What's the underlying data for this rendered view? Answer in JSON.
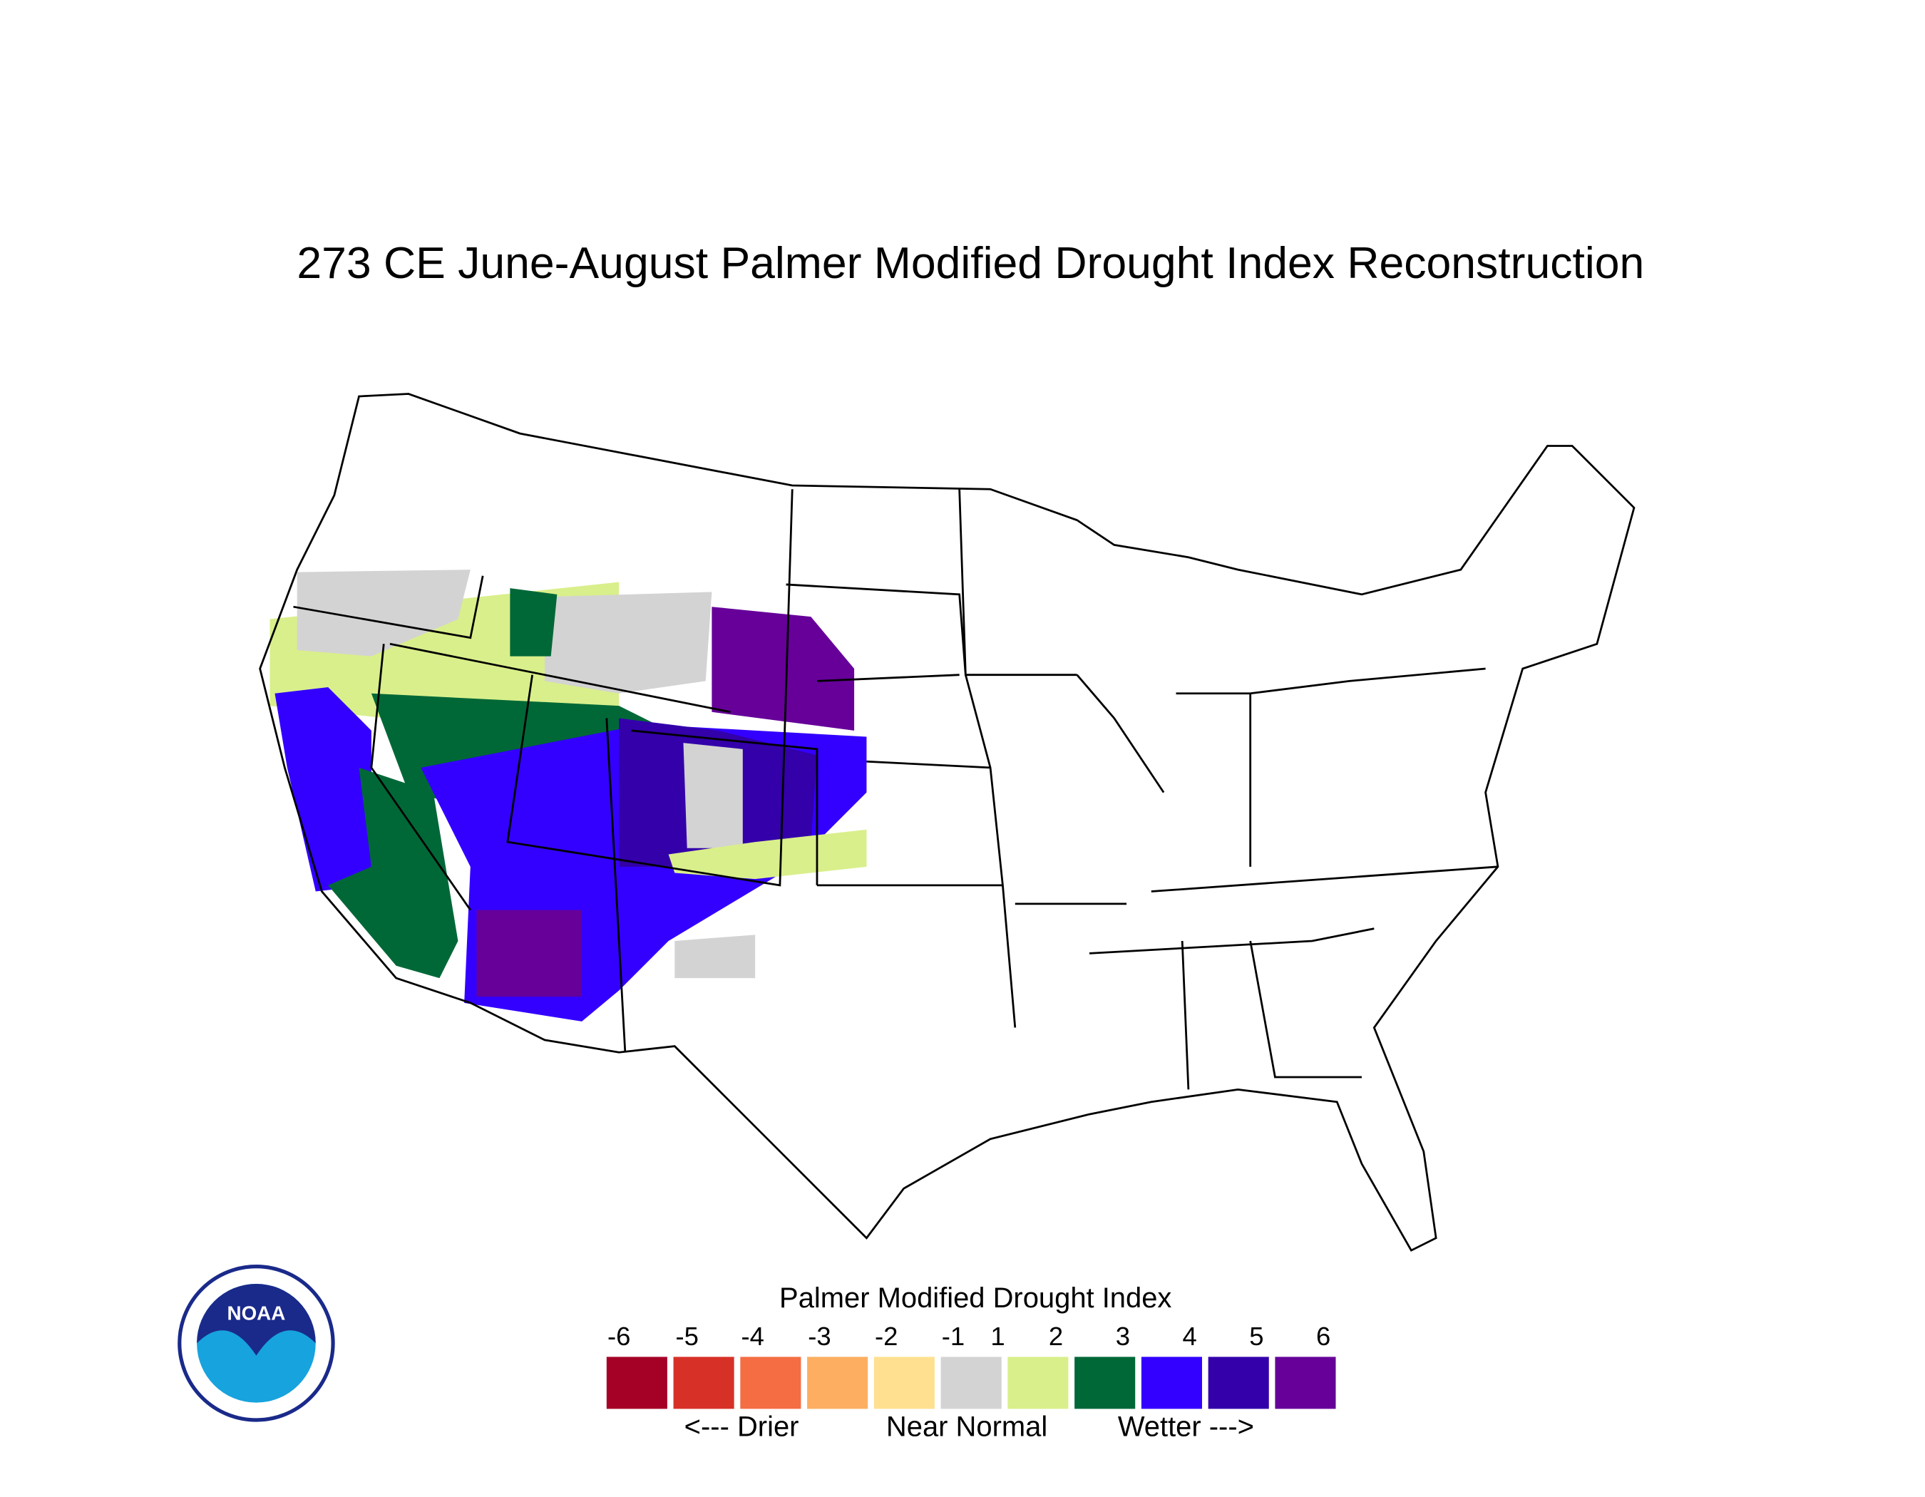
{
  "header": {
    "title": "273 CE  June-August  Palmer Modified Drought Index Reconstruction"
  },
  "legend": {
    "title": "Palmer Modified Drought Index",
    "ticks": [
      -6,
      -5,
      -4,
      -3,
      -2,
      -1,
      1,
      2,
      3,
      4,
      5,
      6
    ],
    "colors": [
      "#a50026",
      "#d73027",
      "#f46d43",
      "#fdae61",
      "#fee090",
      "#d3d3d3",
      "#d9ef8b",
      "#006837",
      "#3300ff",
      "#3300aa",
      "#660099"
    ],
    "labels": [
      "<--- Drier",
      "Near Normal",
      "Wetter --->"
    ]
  },
  "logo": {
    "text": "NOAA"
  }
}
